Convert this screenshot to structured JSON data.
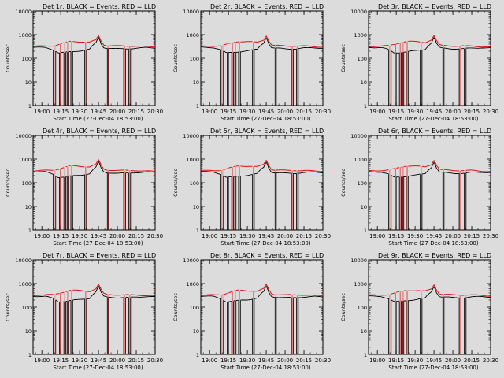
{
  "chart_data": {
    "type": "line",
    "layout": "3x3 grid of panels",
    "background": "#dcdcdc",
    "colors": {
      "events": "#000000",
      "lld": "#e01010"
    },
    "y_scale": "log",
    "ylim": [
      1,
      10000
    ],
    "yticks": [
      1,
      10,
      100,
      1000,
      10000
    ],
    "ytick_labels": [
      "1",
      "10",
      "100",
      "1000",
      "10000"
    ],
    "x_unit": "minutes after 18:53:00",
    "xlim": [
      0,
      97
    ],
    "xticks": [
      7,
      22,
      37,
      52,
      67,
      82,
      97
    ],
    "xtick_labels": [
      "19:00",
      "19:15",
      "19:30",
      "19:45",
      "20:00",
      "20:15",
      "20:30"
    ],
    "ylabel": "Counts/sec",
    "xlabel": "Start Time (27-Dec-04 18:53:00)",
    "panels": [
      {
        "title": "Det 1r, BLACK = Events, RED = LLD"
      },
      {
        "title": "Det 2r, BLACK = Events, RED = LLD"
      },
      {
        "title": "Det 3r, BLACK = Events, RED = LLD"
      },
      {
        "title": "Det 4r, BLACK = Events, RED = LLD"
      },
      {
        "title": "Det 5r, BLACK = Events, RED = LLD"
      },
      {
        "title": "Det 6r, BLACK = Events, RED = LLD"
      },
      {
        "title": "Det 7r, BLACK = Events, RED = LLD"
      },
      {
        "title": "Det 8r, BLACK = Events, RED = LLD"
      },
      {
        "title": "Det 9r, BLACK = Events, RED = LLD"
      }
    ],
    "gaps": [
      [
        16,
        18
      ],
      [
        21,
        22
      ],
      [
        24.5,
        26
      ],
      [
        27,
        28
      ],
      [
        30,
        31.5
      ],
      [
        41,
        42.5
      ],
      [
        59,
        60
      ],
      [
        72,
        73.5
      ],
      [
        76,
        77.5
      ]
    ],
    "series": [
      {
        "name": "LLD",
        "x": [
          0,
          10,
          16,
          20,
          25,
          30,
          38,
          45,
          50,
          52,
          54,
          56,
          58,
          63,
          68,
          75,
          82,
          90,
          97
        ],
        "y": [
          320,
          330,
          340,
          380,
          450,
          520,
          500,
          470,
          600,
          900,
          550,
          380,
          350,
          340,
          330,
          330,
          330,
          310,
          300
        ]
      },
      {
        "name": "Events",
        "x": [
          0,
          10,
          16,
          20,
          25,
          30,
          38,
          45,
          50,
          52,
          54,
          56,
          58,
          63,
          68,
          75,
          82,
          90,
          97
        ],
        "y": [
          290,
          285,
          230,
          170,
          175,
          190,
          210,
          240,
          450,
          750,
          420,
          290,
          270,
          260,
          250,
          250,
          270,
          280,
          270
        ]
      }
    ]
  }
}
